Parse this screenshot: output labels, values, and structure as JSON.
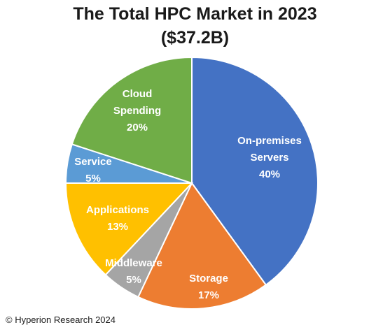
{
  "chart_data": {
    "type": "pie",
    "title": "The Total HPC Market in 2023",
    "subtitle": "($37.2B)",
    "start_angle_deg": 0,
    "direction": "clockwise",
    "slices": [
      {
        "label_lines": [
          "On-premises",
          "Servers"
        ],
        "pct_label": "40%",
        "value": 40,
        "color": "#4472C4"
      },
      {
        "label_lines": [
          "Storage"
        ],
        "pct_label": "17%",
        "value": 17,
        "color": "#ED7D31"
      },
      {
        "label_lines": [
          "Middleware"
        ],
        "pct_label": "5%",
        "value": 5,
        "color": "#A5A5A5"
      },
      {
        "label_lines": [
          "Applications"
        ],
        "pct_label": "13%",
        "value": 13,
        "color": "#FFC000"
      },
      {
        "label_lines": [
          "Service"
        ],
        "pct_label": "5%",
        "value": 5,
        "color": "#5B9BD5"
      },
      {
        "label_lines": [
          "Cloud",
          "Spending"
        ],
        "pct_label": "20%",
        "value": 20,
        "color": "#70AD47"
      }
    ]
  },
  "footer": {
    "copyright": "© Hyperion Research 2024"
  }
}
